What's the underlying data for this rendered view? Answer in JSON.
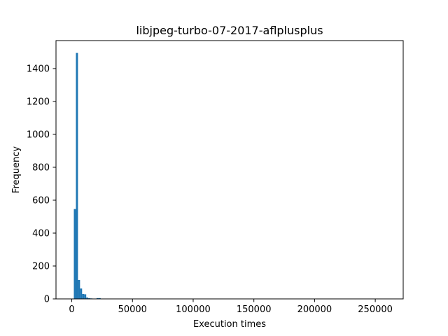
{
  "chart_data": {
    "type": "histogram",
    "title": "libjpeg-turbo-07-2017-aflplusplus",
    "xlabel": "Execution times",
    "ylabel": "Frequency",
    "xlim": [
      -13000,
      273000
    ],
    "ylim": [
      0,
      1570
    ],
    "xticks": [
      0,
      50000,
      100000,
      150000,
      200000,
      250000
    ],
    "xtick_labels": [
      "0",
      "50000",
      "100000",
      "150000",
      "200000",
      "250000"
    ],
    "yticks": [
      0,
      200,
      400,
      600,
      800,
      1000,
      1200,
      1400
    ],
    "ytick_labels": [
      "0",
      "200",
      "400",
      "600",
      "800",
      "1000",
      "1200",
      "1400"
    ],
    "bin_start": 1700,
    "bin_width": 1700,
    "counts": [
      546,
      1495,
      115,
      63,
      30,
      28,
      8,
      4,
      3,
      2,
      1,
      5,
      5,
      0,
      0,
      1,
      1,
      0,
      0,
      1,
      0,
      1,
      1
    ],
    "color": "#1f77b4",
    "grid": false,
    "legend": false
  }
}
